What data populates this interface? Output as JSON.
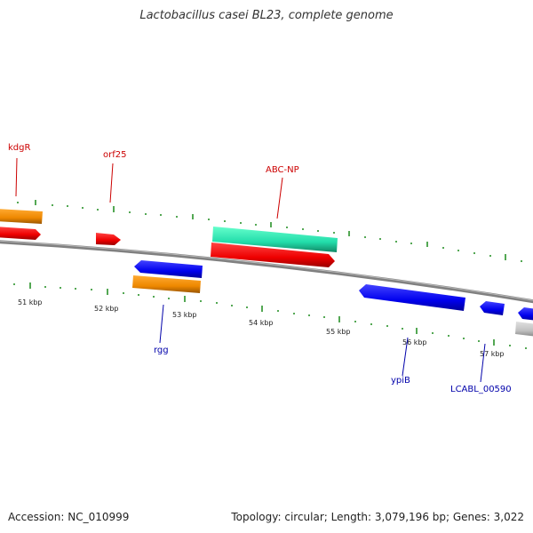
{
  "title": "Lactobacillus casei BL23, complete genome",
  "accession": "Accession: NC_010999",
  "topology": "Topology: circular; Length: 3,079,196 bp; Genes: 3,022",
  "colors": {
    "backbone": "#808080",
    "tick": "#1a8a1a",
    "forward_label": "#cc0000",
    "reverse_label": "#0000aa",
    "cds_forward": "#ee0000",
    "cds_reverse": "#0000ee",
    "rna": "#ff8800",
    "transport": "#22ddaa",
    "pseudo": "#c0c0c0"
  },
  "kbp_labels": [
    "51 kbp",
    "52 kbp",
    "53 kbp",
    "54 kbp",
    "55 kbp",
    "56 kbp",
    "57 kbp"
  ],
  "gene_labels": {
    "kdgR": "kdgR",
    "orf25": "orf25",
    "abc_np": "ABC-NP",
    "rgg": "rgg",
    "ypiB": "ypiB",
    "lcabl_00590": "LCABL_00590"
  }
}
